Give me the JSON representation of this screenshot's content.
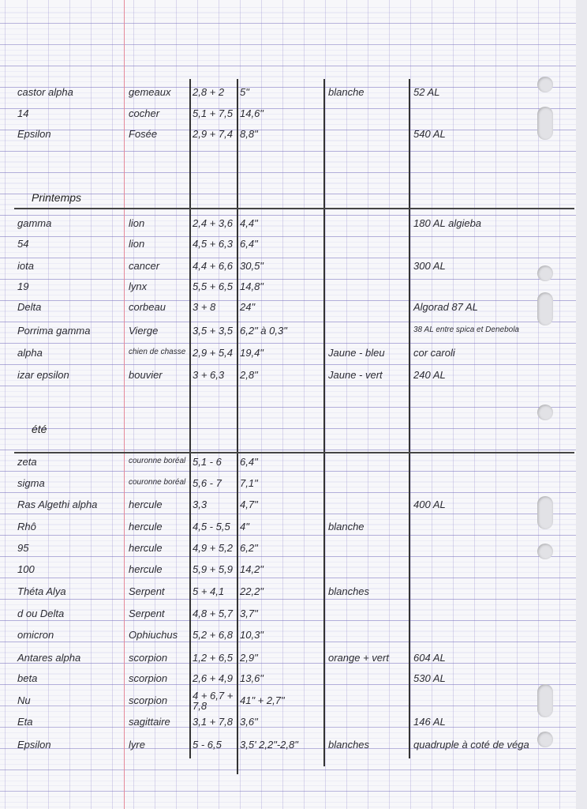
{
  "sections": [
    {
      "title": "",
      "rows": [
        [
          "castor alpha",
          "gemeaux",
          "2,8 + 2",
          "5\"",
          "blanche",
          "52 AL"
        ],
        [
          "14",
          "cocher",
          "5,1 + 7,5",
          "14,6\"",
          "",
          ""
        ],
        [
          "Epsilon",
          "Fosée",
          "2,9 + 7,4",
          "8,8\"",
          "",
          "540 AL"
        ]
      ]
    },
    {
      "title": "Printemps",
      "rows": [
        [
          "gamma",
          "lion",
          "2,4 + 3,6",
          "4,4\"",
          "",
          "180 AL   algieba"
        ],
        [
          "54",
          "lion",
          "4,5 + 6,3",
          "6,4\"",
          "",
          ""
        ],
        [
          "iota",
          "cancer",
          "4,4 + 6,6",
          "30,5\"",
          "",
          "300 AL"
        ],
        [
          "19",
          "lynx",
          "5,5 + 6,5",
          "14,8\"",
          "",
          ""
        ],
        [
          "Delta",
          "corbeau",
          "3 + 8",
          "24\"",
          "",
          "Algorad  87 AL"
        ],
        [
          "Porrima gamma",
          "Vierge",
          "3,5 + 3,5",
          "6,2\" à 0,3\"",
          "",
          "38 AL entre spica et Denebola"
        ],
        [
          "alpha",
          "chien de chasse",
          "2,9 + 5,4",
          "19,4\"",
          "Jaune - bleu",
          "cor caroli"
        ],
        [
          "izar epsilon",
          "bouvier",
          "3 + 6,3",
          "2,8\"",
          "Jaune - vert",
          "240 AL"
        ]
      ]
    },
    {
      "title": "été",
      "rows": [
        [
          "zeta",
          "couronne boréal",
          "5,1 - 6",
          "6,4\"",
          "",
          ""
        ],
        [
          "sigma",
          "couronne boréal",
          "5,6 - 7",
          "7,1\"",
          "",
          ""
        ],
        [
          "Ras Algethi alpha",
          "hercule",
          "3,3",
          "4,7\"",
          "",
          "400 AL"
        ],
        [
          "Rhô",
          "hercule",
          "4,5 - 5,5",
          "4\"",
          "blanche",
          ""
        ],
        [
          "95",
          "hercule",
          "4,9 + 5,2",
          "6,2\"",
          "",
          ""
        ],
        [
          "100",
          "hercule",
          "5,9 + 5,9",
          "14,2\"",
          "",
          ""
        ],
        [
          "Théta Alya",
          "Serpent",
          "5 + 4,1",
          "22,2\"",
          "blanches",
          ""
        ],
        [
          "d ou Delta",
          "Serpent",
          "4,8 + 5,7",
          "3,7\"",
          "",
          ""
        ],
        [
          "omicron",
          "Ophiuchus",
          "5,2 + 6,8",
          "10,3\"",
          "",
          ""
        ],
        [
          "Antares alpha",
          "scorpion",
          "1,2 + 6,5",
          "2,9\"",
          "orange + vert",
          "604 AL"
        ],
        [
          "beta",
          "scorpion",
          "2,6 + 4,9",
          "13,6\"",
          "",
          "530 AL"
        ],
        [
          "Nu",
          "scorpion",
          "4 + 6,7 + 7,8",
          "41\" + 2,7\"",
          "",
          ""
        ],
        [
          "Eta",
          "sagittaire",
          "3,1 + 7,8",
          "3,6\"",
          "",
          "146 AL"
        ],
        [
          "Epsilon",
          "lyre",
          "5 - 6,5",
          "3,5' 2,2\"-2,8\"",
          "blanches",
          "quadruple à coté de véga"
        ]
      ]
    }
  ]
}
